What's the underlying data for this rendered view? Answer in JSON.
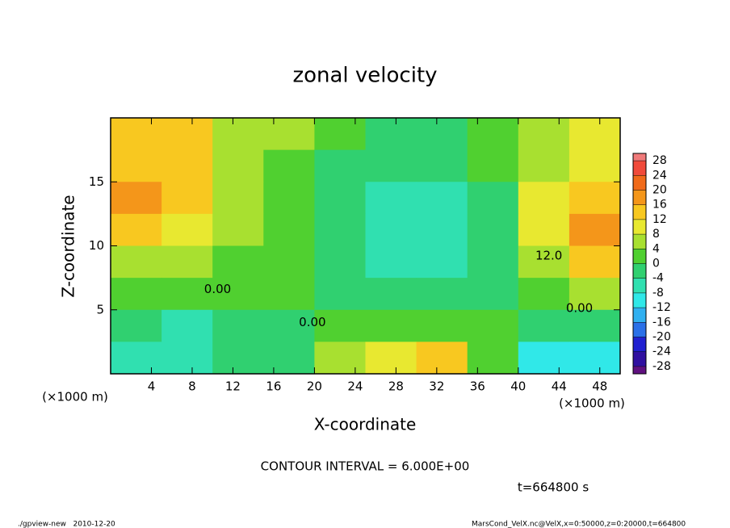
{
  "chart_data": {
    "type": "contour",
    "title": "zonal velocity",
    "x_label": "X-coordinate",
    "y_label": "Z-coordinate",
    "x_unit": "(×1000 m)",
    "y_unit": "(×1000 m)",
    "xlim": [
      0,
      50
    ],
    "xticks": [
      4,
      8,
      12,
      16,
      20,
      24,
      28,
      32,
      36,
      40,
      44,
      48
    ],
    "ylim": [
      0,
      20
    ],
    "yticks": [
      5,
      10,
      15
    ],
    "x": [
      2.5,
      7.5,
      12.5,
      17.5,
      22.5,
      27.5,
      32.5,
      37.5,
      42.5,
      47.5
    ],
    "y": [
      18.75,
      16.25,
      13.75,
      11.25,
      8.75,
      6.25,
      3.75,
      1.25
    ],
    "z": [
      [
        14,
        12,
        6,
        4,
        2,
        -2,
        -1,
        2,
        6,
        8
      ],
      [
        15,
        13,
        6,
        2,
        -2,
        -4,
        -4,
        0,
        6,
        10
      ],
      [
        16,
        13,
        5,
        2,
        -4,
        -8,
        -7,
        -2,
        8,
        14
      ],
      [
        12,
        9,
        4,
        2,
        -4,
        -8,
        -8,
        -3,
        8,
        16
      ],
      [
        6,
        6,
        3,
        0,
        -2,
        -6,
        -5,
        -2,
        4,
        12
      ],
      [
        2,
        2,
        0,
        0,
        -1,
        -4,
        -3,
        -2,
        2,
        4
      ],
      [
        -4,
        -6,
        -4,
        -2,
        0,
        2,
        2,
        0,
        -4,
        -4
      ],
      [
        -8,
        -6,
        -2,
        -1,
        4,
        8,
        12,
        2,
        -10,
        -12
      ]
    ],
    "colorbar": {
      "lim": [
        -30,
        30
      ],
      "ticks": [
        28,
        24,
        20,
        16,
        12,
        8,
        4,
        0,
        -4,
        -8,
        -12,
        -16,
        -20,
        -24,
        -28
      ],
      "colors": [
        "#f07a7a",
        "#f04a3a",
        "#f06a1a",
        "#f4961a",
        "#f8c820",
        "#e8e830",
        "#a8e030",
        "#50d030",
        "#30d070",
        "#30e0b0",
        "#30e8e8",
        "#30b0f0",
        "#2a70e8",
        "#2020d0",
        "#3010a0",
        "#601080"
      ]
    },
    "contour_labels": [
      {
        "text": "0.00",
        "x": 10.5,
        "y": 6.6
      },
      {
        "text": "0.00",
        "x": 19.8,
        "y": 4.0
      },
      {
        "text": "0.00",
        "x": 46,
        "y": 5.1
      },
      {
        "text": "12.0",
        "x": 43,
        "y": 9.2
      }
    ],
    "contour_interval": "CONTOUR INTERVAL = 6.000E+00",
    "time": "t=664800 s",
    "footer_left": "./gpview-new   2010-12-20",
    "footer_right": "MarsCond_VelX.nc@VelX,x=0:50000,z=0:20000,t=664800"
  }
}
